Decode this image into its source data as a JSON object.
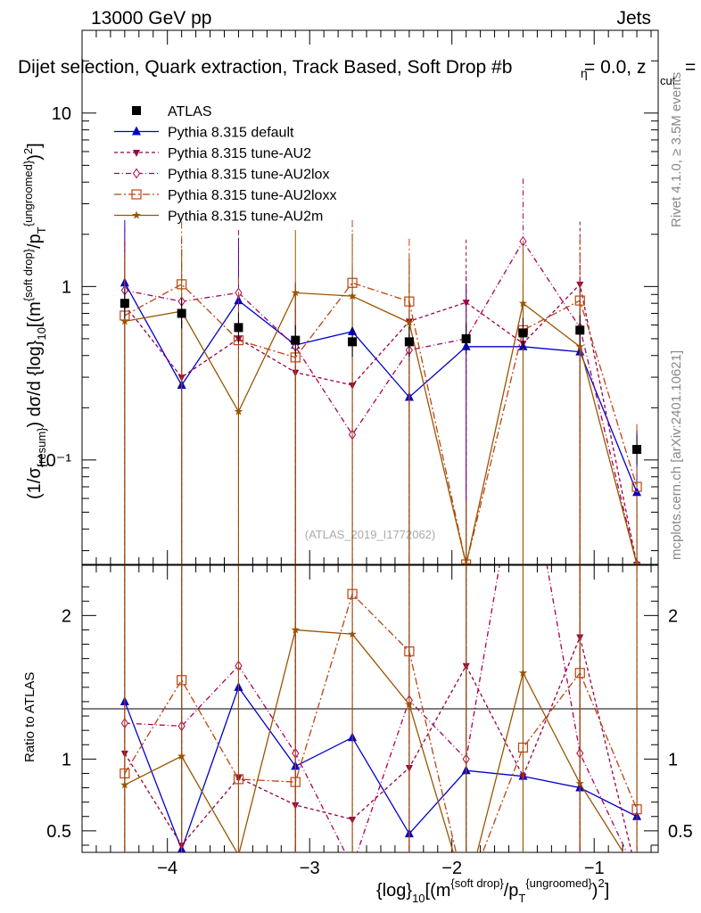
{
  "header": {
    "energy": "13000 GeV pp",
    "category": "Jets",
    "selection": "Dijet selection, Quark extraction, Track Based, Soft Drop #b",
    "selection_rest": "= 0.0, z",
    "beta_symbol": "η",
    "zcut_sub": "cut",
    "zcut_eq": "="
  },
  "side": {
    "rivet": "Rivet 4.1.0, ≥ 3.5M events",
    "mcplots": "mcplots.cern.ch [arXiv:2401.10621]"
  },
  "watermark": "(ATLAS_2019_I1772062)",
  "ylabel_main": {
    "pre": "(1/σ",
    "resum": "{resum}",
    "mid": ") dσ/d {log}",
    "ten": "10",
    "post": "[(m",
    "sd": "{soft drop}",
    "slash": "/p",
    "T": "T",
    "ungroomed": "{ungroomed}",
    "end": ")",
    "two": "2",
    "close": "]"
  },
  "ylabel_ratio": "Ratio to ATLAS",
  "xlabel": {
    "pre": "{log}",
    "ten": "10",
    "post": "[(m",
    "sd": "{soft drop}",
    "slash": "/p",
    "T": "T",
    "ungroomed": "{ungroomed}",
    "end": ")",
    "two": "2",
    "close": "]"
  },
  "colors": {
    "atlas": "#000000",
    "default": "#0000cc",
    "au2": "#990044",
    "au2lox": "#aa0055",
    "au2loxx": "#bb4411",
    "au2m": "#995500"
  },
  "chart_data": [
    {
      "type": "scatter",
      "name": "main",
      "yscale": "log",
      "xlim": [
        -4.6,
        -0.55
      ],
      "ylim": [
        0.025,
        30
      ],
      "x": [
        -4.3,
        -3.9,
        -3.5,
        -3.1,
        -2.7,
        -2.3,
        -1.9,
        -1.5,
        -1.1,
        -0.7
      ],
      "xticks": [
        -4,
        -3,
        -2,
        -1
      ],
      "xticklabels": [
        "−4",
        "−3",
        "−2",
        "−1"
      ],
      "yticks": [
        0.1,
        1,
        10
      ],
      "yticklabels": [
        "10⁻¹",
        "1",
        "10"
      ],
      "legend": [
        "ATLAS",
        "Pythia 8.315 default",
        "Pythia 8.315 tune-AU2",
        "Pythia 8.315 tune-AU2lox",
        "Pythia 8.315 tune-AU2loxx",
        "Pythia 8.315 tune-AU2m"
      ],
      "series": [
        {
          "name": "ATLAS",
          "values": [
            0.8,
            0.7,
            0.58,
            0.49,
            0.48,
            0.48,
            0.5,
            0.54,
            0.56,
            0.115
          ]
        },
        {
          "name": "Pythia 8.315 default",
          "values": [
            1.05,
            0.27,
            0.83,
            0.46,
            0.55,
            0.23,
            0.45,
            0.45,
            0.42,
            0.065
          ]
        },
        {
          "name": "Pythia 8.315 tune-AU2",
          "values": [
            0.78,
            0.3,
            0.5,
            0.32,
            0.27,
            0.63,
            0.81,
            0.47,
            1.03,
            0.025
          ]
        },
        {
          "name": "Pythia 8.315 tune-AU2lox",
          "values": [
            0.95,
            0.82,
            0.92,
            0.45,
            0.14,
            0.43,
            0.5,
            1.82,
            0.58,
            0.025
          ]
        },
        {
          "name": "Pythia 8.315 tune-AU2loxx",
          "values": [
            0.68,
            1.03,
            0.49,
            0.39,
            1.05,
            0.82,
            0.025,
            0.56,
            0.83,
            0.07
          ]
        },
        {
          "name": "Pythia 8.315 tune-AU2m",
          "values": [
            0.63,
            0.72,
            0.19,
            0.92,
            0.88,
            0.62,
            0.025,
            0.8,
            0.45,
            0.025
          ]
        }
      ]
    },
    {
      "type": "line",
      "name": "ratio",
      "xlim": [
        -4.6,
        -0.55
      ],
      "ylim": [
        0.35,
        2.35
      ],
      "yticks": [
        0.5,
        1,
        2
      ],
      "yticklabels": [
        "0.5",
        "1",
        "2"
      ],
      "series": [
        {
          "name": "Pythia 8.315 default",
          "values": [
            1.4,
            0.37,
            1.5,
            0.95,
            1.15,
            0.48,
            0.92,
            0.88,
            0.8,
            0.6
          ]
        },
        {
          "name": "Pythia 8.315 tune-AU2",
          "values": [
            1.04,
            0.4,
            0.87,
            0.68,
            0.58,
            0.94,
            1.65,
            0.88,
            1.85,
            0.2
          ]
        },
        {
          "name": "Pythia 8.315 tune-AU2lox",
          "values": [
            1.25,
            1.23,
            1.65,
            1.04,
            0.25,
            1.41,
            1.0,
            3.3,
            1.04,
            0.2
          ]
        },
        {
          "name": "Pythia 8.315 tune-AU2loxx",
          "values": [
            0.9,
            1.55,
            0.86,
            0.84,
            2.15,
            1.75,
            0.05,
            1.08,
            1.6,
            0.65
          ]
        },
        {
          "name": "Pythia 8.315 tune-AU2m",
          "values": [
            0.82,
            1.02,
            0.33,
            1.9,
            1.87,
            1.38,
            0.05,
            1.6,
            0.83,
            0.2
          ]
        }
      ]
    }
  ]
}
